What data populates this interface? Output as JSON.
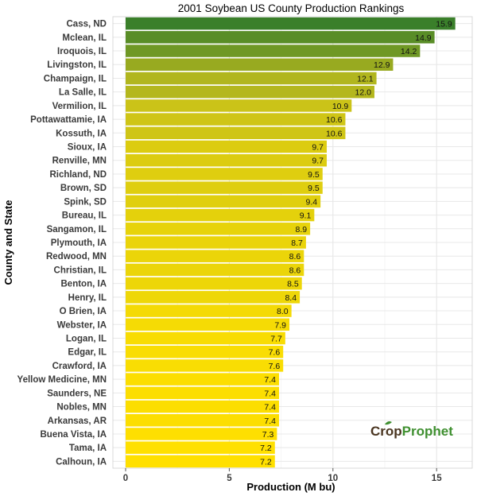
{
  "chart_data": {
    "type": "bar",
    "orientation": "horizontal",
    "title": "2001 Soybean US County Production Rankings",
    "xlabel": "Production (M bu)",
    "ylabel": "County and State",
    "xlim": [
      0,
      16.7
    ],
    "xticks": [
      0,
      5,
      10,
      15
    ],
    "grid": true,
    "categories": [
      "Cass, ND",
      "Mclean, IL",
      "Iroquois, IL",
      "Livingston, IL",
      "Champaign, IL",
      "La Salle, IL",
      "Vermilion, IL",
      "Pottawattamie, IA",
      "Kossuth, IA",
      "Sioux, IA",
      "Renville, MN",
      "Richland, ND",
      "Brown, SD",
      "Spink, SD",
      "Bureau, IL",
      "Sangamon, IL",
      "Plymouth, IA",
      "Redwood, MN",
      "Christian, IL",
      "Benton, IA",
      "Henry, IL",
      "O Brien, IA",
      "Webster, IA",
      "Logan, IL",
      "Edgar, IL",
      "Crawford, IA",
      "Yellow Medicine, MN",
      "Saunders, NE",
      "Nobles, MN",
      "Arkansas, AR",
      "Buena Vista, IA",
      "Tama, IA",
      "Calhoun, IA"
    ],
    "values": [
      15.9,
      14.9,
      14.2,
      12.9,
      12.1,
      12.0,
      10.9,
      10.6,
      10.6,
      9.7,
      9.7,
      9.5,
      9.5,
      9.4,
      9.1,
      8.9,
      8.7,
      8.6,
      8.6,
      8.5,
      8.4,
      8.0,
      7.9,
      7.7,
      7.6,
      7.6,
      7.4,
      7.4,
      7.4,
      7.4,
      7.3,
      7.2,
      7.2
    ],
    "value_labels": [
      "15.9",
      "14.9",
      "14.2",
      "12.9",
      "12.1",
      "12.0",
      "10.9",
      "10.6",
      "10.6",
      "9.7",
      "9.7",
      "9.5",
      "9.5",
      "9.4",
      "9.1",
      "8.9",
      "8.7",
      "8.6",
      "8.6",
      "8.5",
      "8.4",
      "8.0",
      "7.9",
      "7.7",
      "7.6",
      "7.6",
      "7.4",
      "7.4",
      "7.4",
      "7.4",
      "7.3",
      "7.2",
      "7.2"
    ],
    "color_scale": {
      "low": "#ffe000",
      "mid": "#c2be1c",
      "high": "#3a7f2a"
    }
  },
  "branding": {
    "logo_text_part1": "Crop",
    "logo_text_part2": "Prophet",
    "logo_color_part1": "#4a3520",
    "logo_color_part2": "#3e8f2f"
  }
}
